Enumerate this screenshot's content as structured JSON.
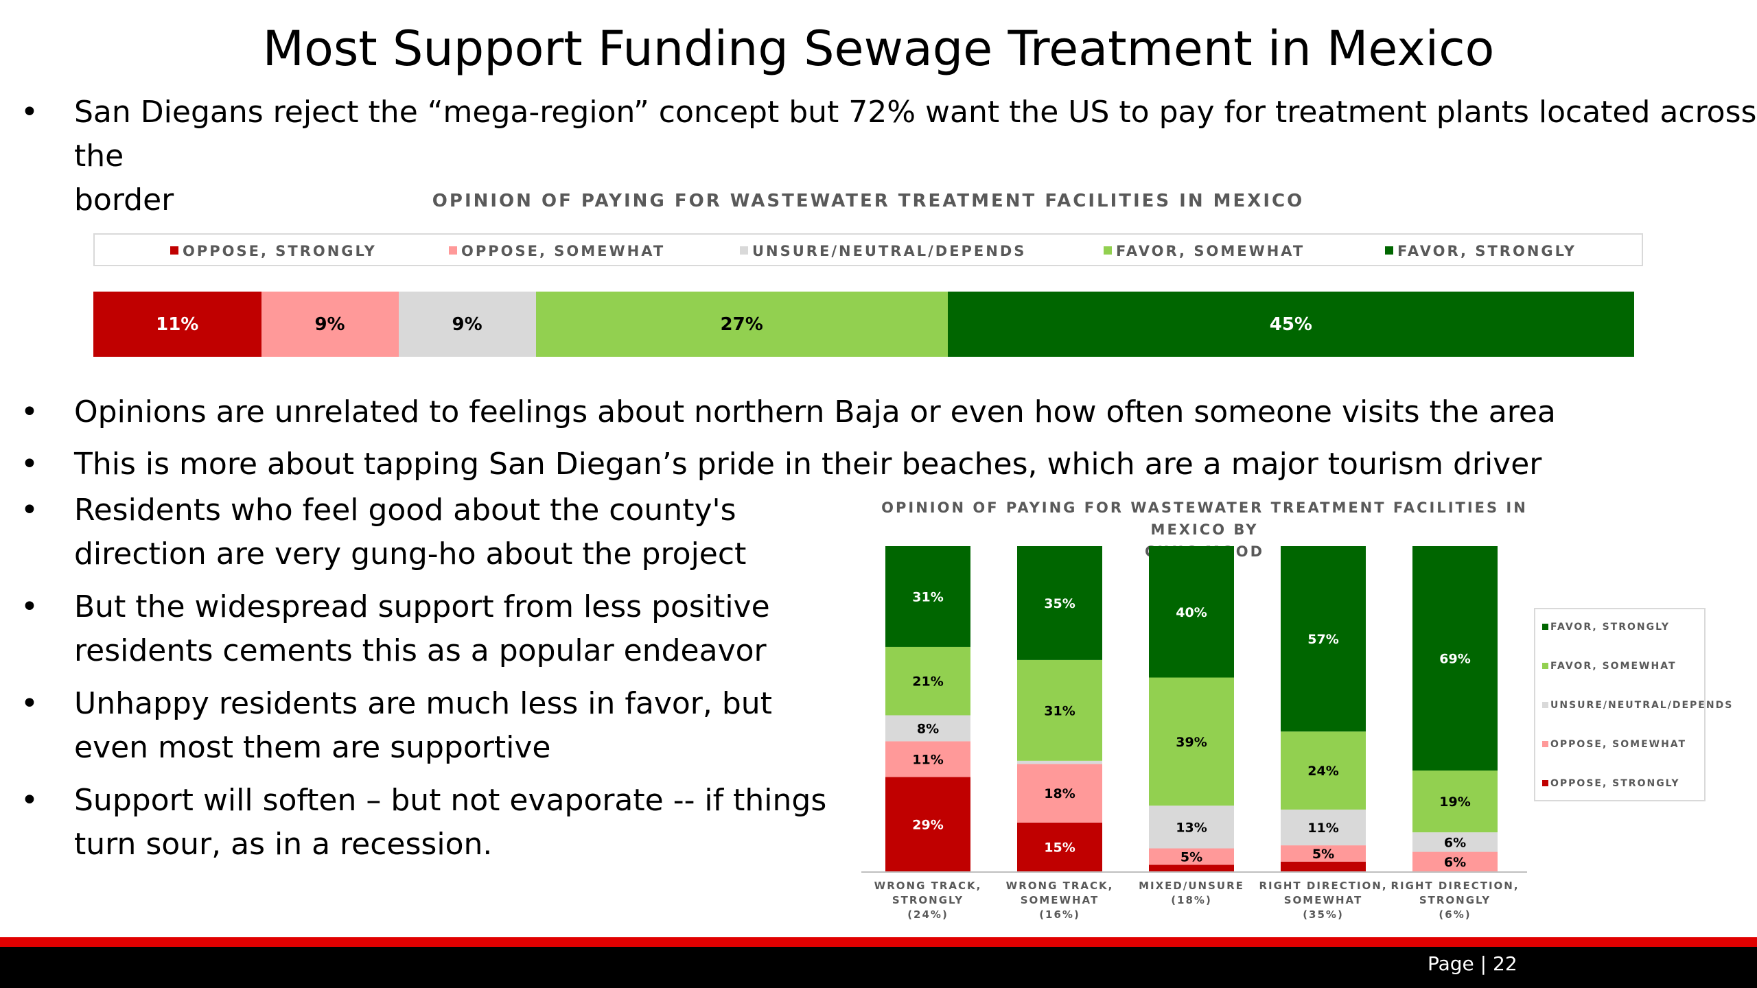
{
  "title": "Most Support Funding Sewage Treatment in Mexico",
  "bullets_top": [
    {
      "line1": "San Diegans reject the “mega-region” concept but 72% want the US to pay for treatment plants located across",
      "line2": "the border"
    }
  ],
  "bullets_mid": [
    "Opinions are unrelated to feelings about northern Baja or even how often someone visits the area",
    "This is more about tapping San Diegan’s pride in their beaches, which are a major tourism driver"
  ],
  "bullets_left": [
    {
      "line1": "Residents who feel good about the county's",
      "line2": "direction are very gung-ho about the project"
    },
    {
      "line1": "But the widespread support from less positive",
      "line2": "residents cements this as a popular endeavor"
    },
    {
      "line1": "Unhappy residents are much less in favor, but",
      "line2": "even most them are supportive"
    },
    {
      "line1": "Support will soften – but not evaporate -- if things",
      "line2": "turn sour, as in a recession."
    }
  ],
  "bullet_glyph": "•",
  "footer": {
    "page_label": "Page | 22"
  },
  "colors": {
    "oppose_strongly": "#c00000",
    "oppose_somewhat": "#ff9999",
    "unsure": "#d9d9d9",
    "favor_somewhat": "#92d050",
    "favor_strongly": "#006600",
    "footer_red": "#e00000",
    "footer_black": "#000000"
  },
  "chart_data": [
    {
      "type": "bar",
      "orientation": "horizontal-stacked-100",
      "title": "OPINION OF PAYING FOR WASTEWATER TREATMENT FACILITIES IN MEXICO",
      "legend_position": "top",
      "series": [
        {
          "name": "OPPOSE, STRONGLY",
          "values": [
            11
          ],
          "label": "11%"
        },
        {
          "name": "OPPOSE, SOMEWHAT",
          "values": [
            9
          ],
          "label": "9%"
        },
        {
          "name": "UNSURE/NEUTRAL/DEPENDS",
          "values": [
            9
          ],
          "label": "9%"
        },
        {
          "name": "FAVOR, SOMEWHAT",
          "values": [
            27
          ],
          "label": "27%"
        },
        {
          "name": "FAVOR, STRONGLY",
          "values": [
            45
          ],
          "label": "45%"
        }
      ]
    },
    {
      "type": "bar",
      "orientation": "vertical-stacked-100",
      "title_line1": "OPINION OF PAYING FOR WASTEWATER TREATMENT FACILITIES IN MEXICO BY",
      "title_line2": "CIVIC MOOD",
      "legend_position": "right",
      "categories": [
        {
          "line1": "WRONG TRACK,",
          "line2": "STRONGLY",
          "line3": "(24%)"
        },
        {
          "line1": "WRONG TRACK,",
          "line2": "SOMEWHAT",
          "line3": "(16%)"
        },
        {
          "line1": "MIXED/UNSURE",
          "line2": "(18%)",
          "line3": ""
        },
        {
          "line1": "RIGHT DIRECTION,",
          "line2": "SOMEWHAT",
          "line3": "(35%)"
        },
        {
          "line1": "RIGHT DIRECTION,",
          "line2": "STRONGLY",
          "line3": "(6%)"
        }
      ],
      "series": [
        {
          "name": "OPPOSE, STRONGLY",
          "values": [
            29,
            15,
            2,
            3,
            0
          ],
          "labels": [
            "29%",
            "15%",
            "",
            "",
            ""
          ]
        },
        {
          "name": "OPPOSE, SOMEWHAT",
          "values": [
            11,
            18,
            5,
            5,
            6
          ],
          "labels": [
            "11%",
            "18%",
            "5%",
            "5%",
            "6%"
          ]
        },
        {
          "name": "UNSURE/NEUTRAL/DEPENDS",
          "values": [
            8,
            1,
            13,
            11,
            6
          ],
          "labels": [
            "8%",
            "",
            "13%",
            "11%",
            "6%"
          ]
        },
        {
          "name": "FAVOR, SOMEWHAT",
          "values": [
            21,
            31,
            39,
            24,
            19
          ],
          "labels": [
            "21%",
            "31%",
            "39%",
            "24%",
            "19%"
          ]
        },
        {
          "name": "FAVOR, STRONGLY",
          "values": [
            31,
            35,
            40,
            57,
            69
          ],
          "labels": [
            "31%",
            "35%",
            "40%",
            "57%",
            "69%"
          ]
        }
      ],
      "legend_order": [
        "FAVOR, STRONGLY",
        "FAVOR, SOMEWHAT",
        "UNSURE/NEUTRAL/DEPENDS",
        "OPPOSE, SOMEWHAT",
        "OPPOSE, STRONGLY"
      ]
    }
  ]
}
